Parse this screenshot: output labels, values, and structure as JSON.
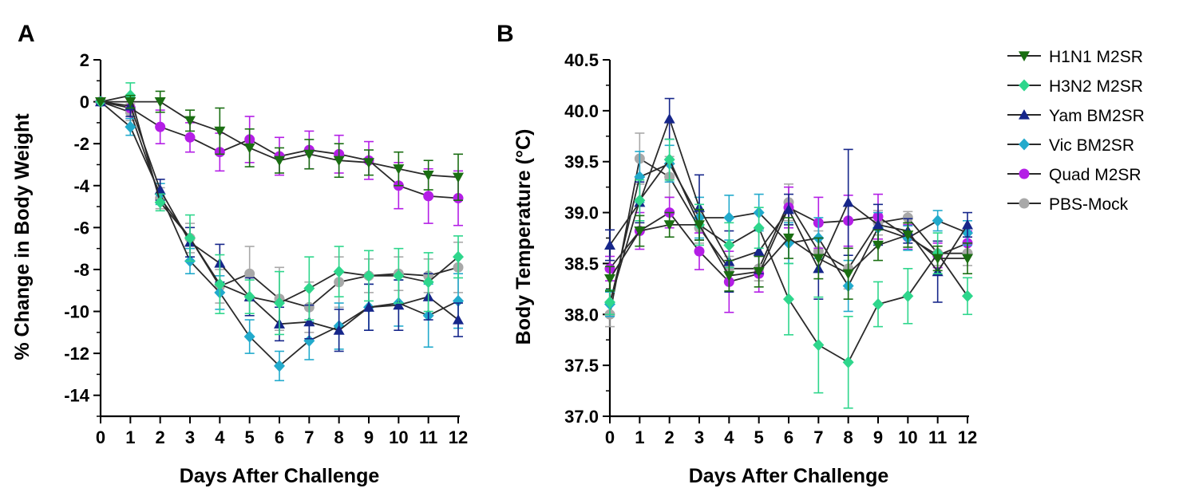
{
  "legend": [
    {
      "name": "H1N1 M2SR",
      "color": "#1a6e12",
      "marker": "triangle-down"
    },
    {
      "name": "H3N2 M2SR",
      "color": "#2ed68c",
      "marker": "diamond"
    },
    {
      "name": "Yam BM2SR",
      "color": "#16268a",
      "marker": "triangle-up"
    },
    {
      "name": "Vic BM2SR",
      "color": "#22aacc",
      "marker": "diamond"
    },
    {
      "name": "Quad M2SR",
      "color": "#b41ee6",
      "marker": "circle"
    },
    {
      "name": "PBS-Mock",
      "color": "#a8a8a8",
      "marker": "circle"
    }
  ],
  "chart_data": [
    {
      "panel": "A",
      "type": "line",
      "xlabel": "Days After Challenge",
      "ylabel": "% Change in Body Weight",
      "x": [
        0,
        1,
        2,
        3,
        4,
        5,
        6,
        7,
        8,
        9,
        10,
        11,
        12
      ],
      "xticks": [
        "0",
        "1",
        "2",
        "3",
        "4",
        "5",
        "6",
        "7",
        "8",
        "9",
        "10",
        "11",
        "12"
      ],
      "ylim": [
        -15,
        2
      ],
      "yticks": [
        "2",
        "0",
        "-2",
        "-4",
        "-6",
        "-8",
        "-10",
        "-12",
        "-14"
      ],
      "ytick_values": [
        2,
        0,
        -2,
        -4,
        -6,
        -8,
        -10,
        -12,
        -14
      ],
      "series": [
        {
          "name": "PBS-Mock",
          "values": [
            0,
            -0.5,
            -4.6,
            -6.5,
            -8.8,
            -8.2,
            -9.4,
            -9.8,
            -8.6,
            -8.3,
            -8.2,
            -8.3,
            -7.9
          ],
          "err": [
            0,
            0.4,
            0.5,
            0.7,
            0.8,
            1.3,
            1.5,
            1.2,
            1.2,
            0.8,
            0.8,
            0.8,
            1.2
          ]
        },
        {
          "name": "Quad M2SR",
          "values": [
            0,
            -0.3,
            -1.2,
            -1.7,
            -2.4,
            -1.8,
            -2.6,
            -2.3,
            -2.5,
            -2.8,
            -4.0,
            -4.5,
            -4.6
          ],
          "err": [
            0,
            0.5,
            0.8,
            0.7,
            0.9,
            1.1,
            0.9,
            0.9,
            0.9,
            0.9,
            1.1,
            1.3,
            1.3
          ]
        },
        {
          "name": "Vic BM2SR",
          "values": [
            0,
            -1.2,
            -4.4,
            -7.6,
            -9.1,
            -11.2,
            -12.6,
            -11.4,
            -10.7,
            -9.8,
            -9.6,
            -10.2,
            -9.5
          ],
          "err": [
            0,
            0.4,
            0.5,
            0.6,
            0.8,
            0.8,
            0.7,
            0.9,
            1.1,
            1.1,
            1.1,
            1.5,
            1.3
          ]
        },
        {
          "name": "Yam BM2SR",
          "values": [
            0,
            -0.2,
            -4.2,
            -6.7,
            -7.7,
            -9.3,
            -10.6,
            -10.5,
            -10.9,
            -9.8,
            -9.7,
            -9.3,
            -10.4
          ],
          "err": [
            0,
            0.5,
            0.5,
            0.7,
            0.9,
            0.9,
            0.8,
            0.8,
            1.0,
            1.1,
            1.2,
            1.1,
            0.8
          ]
        },
        {
          "name": "H3N2 M2SR",
          "values": [
            0,
            0.3,
            -4.8,
            -6.5,
            -8.7,
            -9.3,
            -9.6,
            -8.9,
            -8.1,
            -8.3,
            -8.3,
            -8.6,
            -7.4
          ],
          "err": [
            0,
            0.6,
            0.4,
            1.1,
            1.4,
            0.8,
            1.5,
            1.5,
            1.2,
            1.2,
            1.3,
            1.4,
            1.0
          ]
        },
        {
          "name": "H1N1 M2SR",
          "values": [
            0,
            0.0,
            0.0,
            -0.9,
            -1.4,
            -2.2,
            -2.8,
            -2.5,
            -2.8,
            -2.9,
            -3.2,
            -3.5,
            -3.6
          ],
          "err": [
            0,
            0.3,
            0.5,
            0.5,
            1.1,
            0.9,
            0.6,
            0.7,
            0.8,
            0.6,
            0.8,
            0.7,
            1.1
          ]
        }
      ]
    },
    {
      "panel": "B",
      "type": "line",
      "xlabel": "Days After Challenge",
      "ylabel": "Body Temperature (°C)",
      "x": [
        0,
        1,
        2,
        3,
        4,
        5,
        6,
        7,
        8,
        9,
        10,
        11,
        12
      ],
      "xticks": [
        "0",
        "1",
        "2",
        "3",
        "4",
        "5",
        "6",
        "7",
        "8",
        "9",
        "10",
        "11",
        "12"
      ],
      "ylim": [
        37.0,
        40.5
      ],
      "yticks": [
        "40.5",
        "40.0",
        "39.5",
        "39.0",
        "38.5",
        "38.0",
        "37.5",
        "37.0"
      ],
      "ytick_values": [
        40.5,
        40.0,
        39.5,
        39.0,
        38.5,
        38.0,
        37.5,
        37.0
      ],
      "series": [
        {
          "name": "PBS-Mock",
          "values": [
            38.0,
            39.53,
            39.35,
            38.85,
            38.45,
            38.45,
            39.1,
            38.62,
            38.45,
            38.9,
            38.95,
            38.6,
            38.6
          ],
          "err": [
            0.12,
            0.25,
            0.2,
            0.15,
            0.12,
            0.12,
            0.18,
            0.2,
            0.2,
            0.12,
            0.06,
            0.12,
            0.12
          ]
        },
        {
          "name": "Quad M2SR",
          "values": [
            38.45,
            38.82,
            39.0,
            38.62,
            38.32,
            38.4,
            39.05,
            38.9,
            38.92,
            38.96,
            38.76,
            38.58,
            38.7
          ],
          "err": [
            0.12,
            0.18,
            0.15,
            0.18,
            0.3,
            0.18,
            0.2,
            0.25,
            0.25,
            0.22,
            0.12,
            0.12,
            0.12
          ]
        },
        {
          "name": "Vic BM2SR",
          "values": [
            38.1,
            39.35,
            39.48,
            38.95,
            38.95,
            39.0,
            38.7,
            38.75,
            38.28,
            38.85,
            38.75,
            38.92,
            38.8
          ],
          "err": [
            0.12,
            0.25,
            0.18,
            0.2,
            0.22,
            0.18,
            0.2,
            0.2,
            0.25,
            0.15,
            0.12,
            0.1,
            0.12
          ]
        },
        {
          "name": "Yam BM2SR",
          "values": [
            38.68,
            39.1,
            39.92,
            39.05,
            38.52,
            38.62,
            39.03,
            38.45,
            39.1,
            38.88,
            38.82,
            38.42,
            38.88
          ],
          "err": [
            0.15,
            0.2,
            0.2,
            0.32,
            0.3,
            0.22,
            0.15,
            0.3,
            0.52,
            0.2,
            0.12,
            0.3,
            0.12
          ]
        },
        {
          "name": "H3N2 M2SR",
          "values": [
            38.12,
            39.12,
            39.52,
            38.88,
            38.68,
            38.85,
            38.15,
            37.7,
            37.53,
            38.1,
            38.18,
            38.6,
            38.18
          ],
          "err": [
            0.12,
            0.2,
            0.2,
            0.2,
            0.22,
            0.2,
            0.35,
            0.47,
            0.45,
            0.22,
            0.27,
            0.2,
            0.18
          ]
        },
        {
          "name": "H1N1 M2SR",
          "values": [
            38.35,
            38.82,
            38.88,
            38.88,
            38.38,
            38.42,
            38.75,
            38.55,
            38.4,
            38.68,
            38.78,
            38.55,
            38.55
          ],
          "err": [
            0.12,
            0.15,
            0.12,
            0.15,
            0.15,
            0.15,
            0.2,
            0.2,
            0.25,
            0.15,
            0.12,
            0.12,
            0.15
          ]
        }
      ]
    }
  ]
}
